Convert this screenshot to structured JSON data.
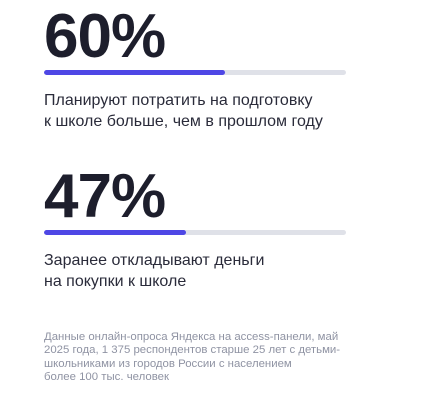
{
  "stats": [
    {
      "value": "60%",
      "fraction": 0.6,
      "caption_lines": [
        "Планируют потратить на подготовку",
        "к школе больше, чем в прошлом году"
      ]
    },
    {
      "value": "47%",
      "fraction": 0.47,
      "caption_lines": [
        "Заранее откладывают деньги",
        "на покупки к школе"
      ]
    }
  ],
  "footnote_lines": [
    "Данные онлайн-опроса Яндекса на access-панели, май",
    "2025 года, 1 375 респондентов старше 25 лет с детьми-",
    "школьниками из городов России с населением",
    "более 100 тыс. человек"
  ],
  "colors": {
    "bar_fill": "#4e47e5",
    "bar_track": "#dfe1e8",
    "number_text": "#1d1e2c",
    "footnote_text": "#8f93a3"
  }
}
